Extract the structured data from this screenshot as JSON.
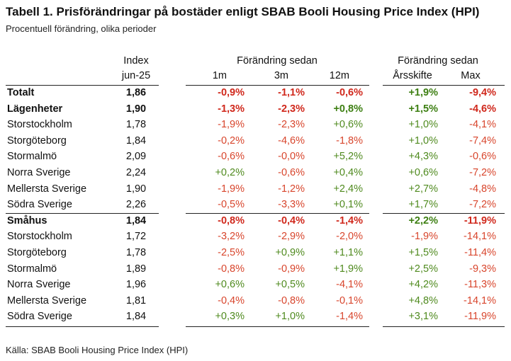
{
  "title": "Tabell 1. Prisförändringar på bostäder enligt SBAB Booli Housing Price Index (HPI)",
  "subtitle": "Procentuell förändring, olika perioder",
  "source": "Källa: SBAB Booli Housing Price Index (HPI)",
  "header": {
    "index_label": "Index",
    "index_date": "jun-25",
    "group1": "Förändring sedan",
    "group2": "Förändring sedan",
    "col_1m": "1m",
    "col_3m": "3m",
    "col_12m": "12m",
    "col_ytd": "Årsskifte",
    "col_max": "Max"
  },
  "rows": [
    {
      "label": "Totalt",
      "index": "1,86",
      "m1": "-0,9%",
      "m3": "-1,1%",
      "m12": "-0,6%",
      "ytd": "+1,9%",
      "max": "-9,4%",
      "bold": true
    },
    {
      "label": "Lägenheter",
      "index": "1,90",
      "m1": "-1,3%",
      "m3": "-2,3%",
      "m12": "+0,8%",
      "ytd": "+1,5%",
      "max": "-4,6%",
      "bold": true
    },
    {
      "label": "Storstockholm",
      "index": "1,78",
      "m1": "-1,9%",
      "m3": "-2,3%",
      "m12": "+0,6%",
      "ytd": "+1,0%",
      "max": "-4,1%"
    },
    {
      "label": "Storgöteborg",
      "index": "1,84",
      "m1": "-0,2%",
      "m3": "-4,6%",
      "m12": "-1,8%",
      "ytd": "+1,0%",
      "max": "-7,4%"
    },
    {
      "label": "Stormalmö",
      "index": "2,09",
      "m1": "-0,6%",
      "m3": "-0,0%",
      "m12": "+5,2%",
      "ytd": "+4,3%",
      "max": "-0,6%"
    },
    {
      "label": "Norra Sverige",
      "index": "2,24",
      "m1": "+0,2%",
      "m3": "-0,6%",
      "m12": "+0,4%",
      "ytd": "+0,6%",
      "max": "-7,2%"
    },
    {
      "label": "Mellersta Sverige",
      "index": "1,90",
      "m1": "-1,9%",
      "m3": "-1,2%",
      "m12": "+2,4%",
      "ytd": "+2,7%",
      "max": "-4,8%"
    },
    {
      "label": "Södra Sverige",
      "index": "2,26",
      "m1": "-0,5%",
      "m3": "-3,3%",
      "m12": "+0,1%",
      "ytd": "+1,7%",
      "max": "-7,2%"
    },
    {
      "label": "Småhus",
      "index": "1,84",
      "m1": "-0,8%",
      "m3": "-0,4%",
      "m12": "-1,4%",
      "ytd": "+2,2%",
      "max": "-11,9%",
      "bold": true
    },
    {
      "label": "Storstockholm",
      "index": "1,72",
      "m1": "-3,2%",
      "m3": "-2,9%",
      "m12": "-2,0%",
      "ytd": "-1,9%",
      "max": "-14,1%"
    },
    {
      "label": "Storgöteborg",
      "index": "1,78",
      "m1": "-2,5%",
      "m3": "+0,9%",
      "m12": "+1,1%",
      "ytd": "+1,5%",
      "max": "-11,4%"
    },
    {
      "label": "Stormalmö",
      "index": "1,89",
      "m1": "-0,8%",
      "m3": "-0,9%",
      "m12": "+1,9%",
      "ytd": "+2,5%",
      "max": "-9,3%"
    },
    {
      "label": "Norra Sverige",
      "index": "1,96",
      "m1": "+0,6%",
      "m3": "+0,5%",
      "m12": "-4,1%",
      "ytd": "+4,2%",
      "max": "-11,3%"
    },
    {
      "label": "Mellersta Sverige",
      "index": "1,81",
      "m1": "-0,4%",
      "m3": "-0,8%",
      "m12": "-0,1%",
      "ytd": "+4,8%",
      "max": "-14,1%"
    },
    {
      "label": "Södra Sverige",
      "index": "1,84",
      "m1": "+0,3%",
      "m3": "+1,0%",
      "m12": "-1,4%",
      "ytd": "+3,1%",
      "max": "-11,9%"
    }
  ],
  "colors": {
    "negative": "#d8452c",
    "positive": "#4f8a1e"
  }
}
